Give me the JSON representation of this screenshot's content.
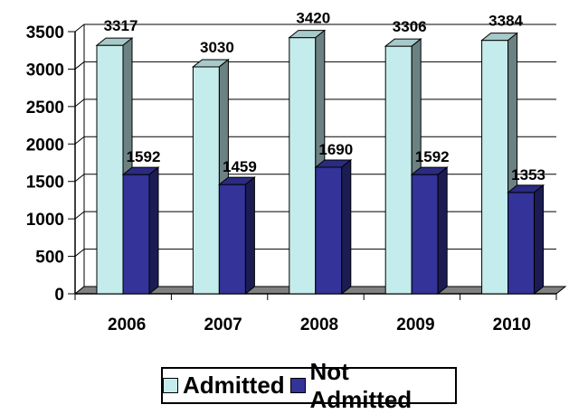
{
  "chart_data": {
    "type": "bar",
    "categories": [
      "2006",
      "2007",
      "2008",
      "2009",
      "2010"
    ],
    "series": [
      {
        "name": "Admitted",
        "values": [
          3317,
          3030,
          3420,
          3306,
          3384
        ],
        "color": "#c5ecec"
      },
      {
        "name": "Not Admitted",
        "values": [
          1592,
          1459,
          1690,
          1592,
          1353
        ],
        "color": "#333399"
      }
    ],
    "ylim": [
      0,
      3500
    ],
    "yticks": [
      "0",
      "500",
      "1000",
      "1500",
      "2000",
      "2500",
      "3000",
      "3500"
    ],
    "grid": true,
    "legend_position": "bottom",
    "data_labels": true
  },
  "legend": {
    "items": [
      {
        "label": "Admitted",
        "color": "#c5ecec"
      },
      {
        "label": "Not Admitted",
        "color": "#333399"
      }
    ]
  }
}
